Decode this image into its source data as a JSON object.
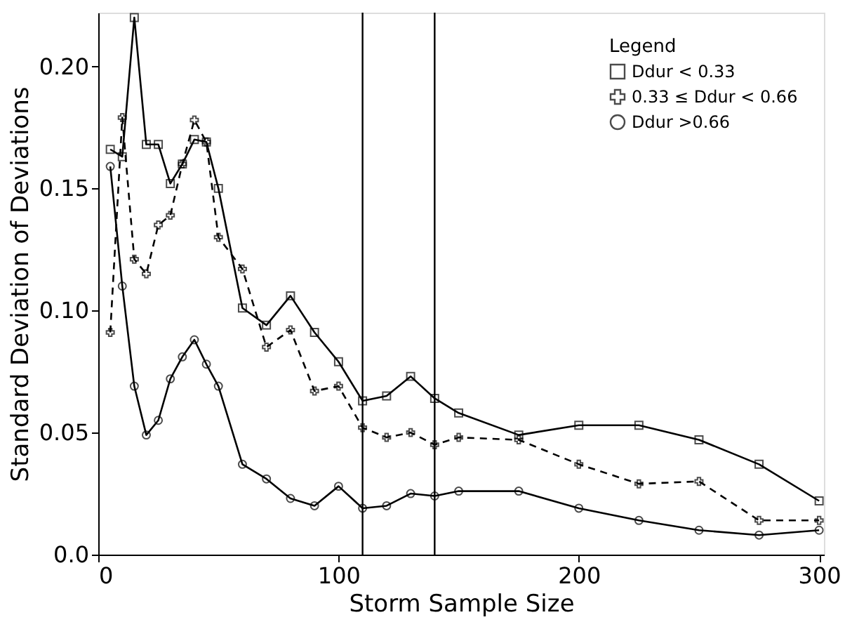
{
  "chart_data": {
    "type": "line",
    "xlabel": "Storm Sample Size",
    "ylabel": "Standard Deviation of Deviations",
    "legend_title": "Legend",
    "legend": "top right",
    "grid": false,
    "xlim": [
      0,
      302
    ],
    "xticks": [
      0,
      100,
      200,
      300
    ],
    "ylim": [
      0,
      0.222
    ],
    "yticks": [
      {
        "value": 0,
        "label": "0.0"
      },
      0.05,
      {
        "value": 0.1,
        "label": "0.10"
      },
      0.15,
      {
        "value": 0.2,
        "label": "0.20"
      }
    ],
    "ref_lines": [
      {
        "axis": "x",
        "value": 110,
        "color": "#000000"
      },
      {
        "axis": "x",
        "value": 140,
        "color": "#000000"
      }
    ],
    "series": [
      {
        "name": "Ddur < 0.33",
        "color": "#000000",
        "marker": "square",
        "line_style": "solid",
        "x": [
          5,
          10,
          15,
          20,
          25,
          30,
          35,
          40,
          45,
          50,
          60,
          70,
          80,
          90,
          100,
          110,
          120,
          130,
          140,
          150,
          175,
          200,
          225,
          250,
          275,
          300
        ],
        "values": [
          0.166,
          0.163,
          0.22,
          0.168,
          0.168,
          0.152,
          0.16,
          0.17,
          0.169,
          0.15,
          0.101,
          0.094,
          0.106,
          0.091,
          0.079,
          0.063,
          0.065,
          0.073,
          0.064,
          0.058,
          0.049,
          0.053,
          0.053,
          0.047,
          0.037,
          0.022
        ]
      },
      {
        "name": "0.33 ≤ Ddur < 0.66",
        "color": "#000000",
        "marker": "cross",
        "line_style": "dashed",
        "x": [
          5,
          10,
          15,
          20,
          25,
          30,
          35,
          40,
          45,
          50,
          60,
          70,
          80,
          90,
          100,
          110,
          120,
          130,
          140,
          150,
          175,
          200,
          225,
          250,
          275,
          300
        ],
        "values": [
          0.091,
          0.179,
          0.121,
          0.115,
          0.135,
          0.139,
          0.16,
          0.178,
          0.169,
          0.13,
          0.117,
          0.085,
          0.092,
          0.067,
          0.069,
          0.052,
          0.048,
          0.05,
          0.045,
          0.048,
          0.047,
          0.037,
          0.029,
          0.03,
          0.014,
          0.014
        ]
      },
      {
        "name": "Ddur >0.66",
        "color": "#000000",
        "marker": "circle",
        "line_style": "solid",
        "x": [
          5,
          10,
          15,
          20,
          25,
          30,
          35,
          40,
          45,
          50,
          60,
          70,
          80,
          90,
          100,
          110,
          120,
          130,
          140,
          150,
          175,
          200,
          225,
          250,
          275,
          300
        ],
        "values": [
          0.159,
          0.11,
          0.069,
          0.049,
          0.055,
          0.072,
          0.081,
          0.088,
          0.078,
          0.069,
          0.037,
          0.031,
          0.023,
          0.02,
          0.028,
          0.019,
          0.02,
          0.025,
          0.024,
          0.026,
          0.026,
          0.019,
          0.014,
          0.01,
          0.008,
          0.01
        ]
      }
    ]
  }
}
